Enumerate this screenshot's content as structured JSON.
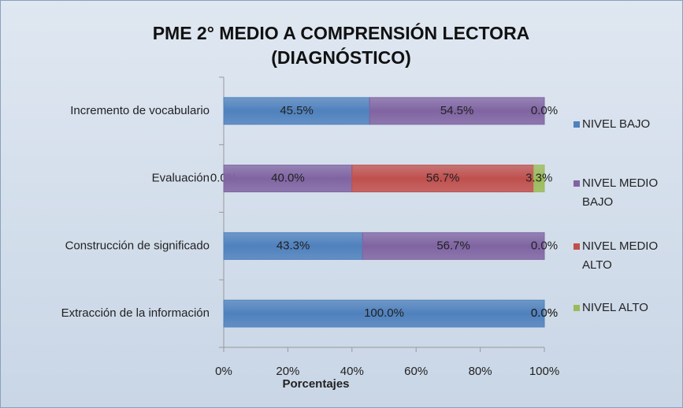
{
  "chart_data": {
    "type": "stacked-bar-horizontal",
    "title": "PME 2° MEDIO A COMPRENSIÓN LECTORA (DIAGNÓSTICO)",
    "x_label": "Porcentajes",
    "categories": [
      "Incremento de vocabulario",
      "Evaluación",
      "Construcción de significado",
      "Extracción de la información"
    ],
    "series": [
      {
        "name": "NIVEL BAJO",
        "color": "#4f81bd",
        "values": [
          45.5,
          0,
          43.3,
          100
        ],
        "value_labels": [
          "45.5%",
          "0.0%",
          "43.3%",
          "100.0%"
        ]
      },
      {
        "name": "NIVEL MEDIO BAJO",
        "color": "#8064a2",
        "values": [
          54.5,
          40,
          56.7,
          0
        ],
        "value_labels": [
          "54.5%",
          "40.0%",
          "56.7%",
          "0.0%"
        ]
      },
      {
        "name": "NIVEL MEDIO ALTO",
        "color": "#c0504d",
        "values": [
          null,
          56.7,
          null,
          null
        ],
        "value_labels": [
          null,
          "56.7%",
          null,
          null
        ]
      },
      {
        "name": "NIVEL ALTO",
        "color": "#9bbb59",
        "values": [
          0,
          3.3,
          0,
          0
        ],
        "value_labels": [
          "0.0%",
          "3.3%",
          "0.0%",
          "0.0%"
        ]
      }
    ],
    "xlim": [
      0,
      100
    ],
    "xticks": [
      {
        "value": 0,
        "label": "0%"
      },
      {
        "value": 20,
        "label": "20%"
      },
      {
        "value": 40,
        "label": "40%"
      },
      {
        "value": 60,
        "label": "60%"
      },
      {
        "value": 80,
        "label": "80%"
      },
      {
        "value": 100,
        "label": "100%"
      }
    ],
    "legend": "right",
    "grid": false
  }
}
